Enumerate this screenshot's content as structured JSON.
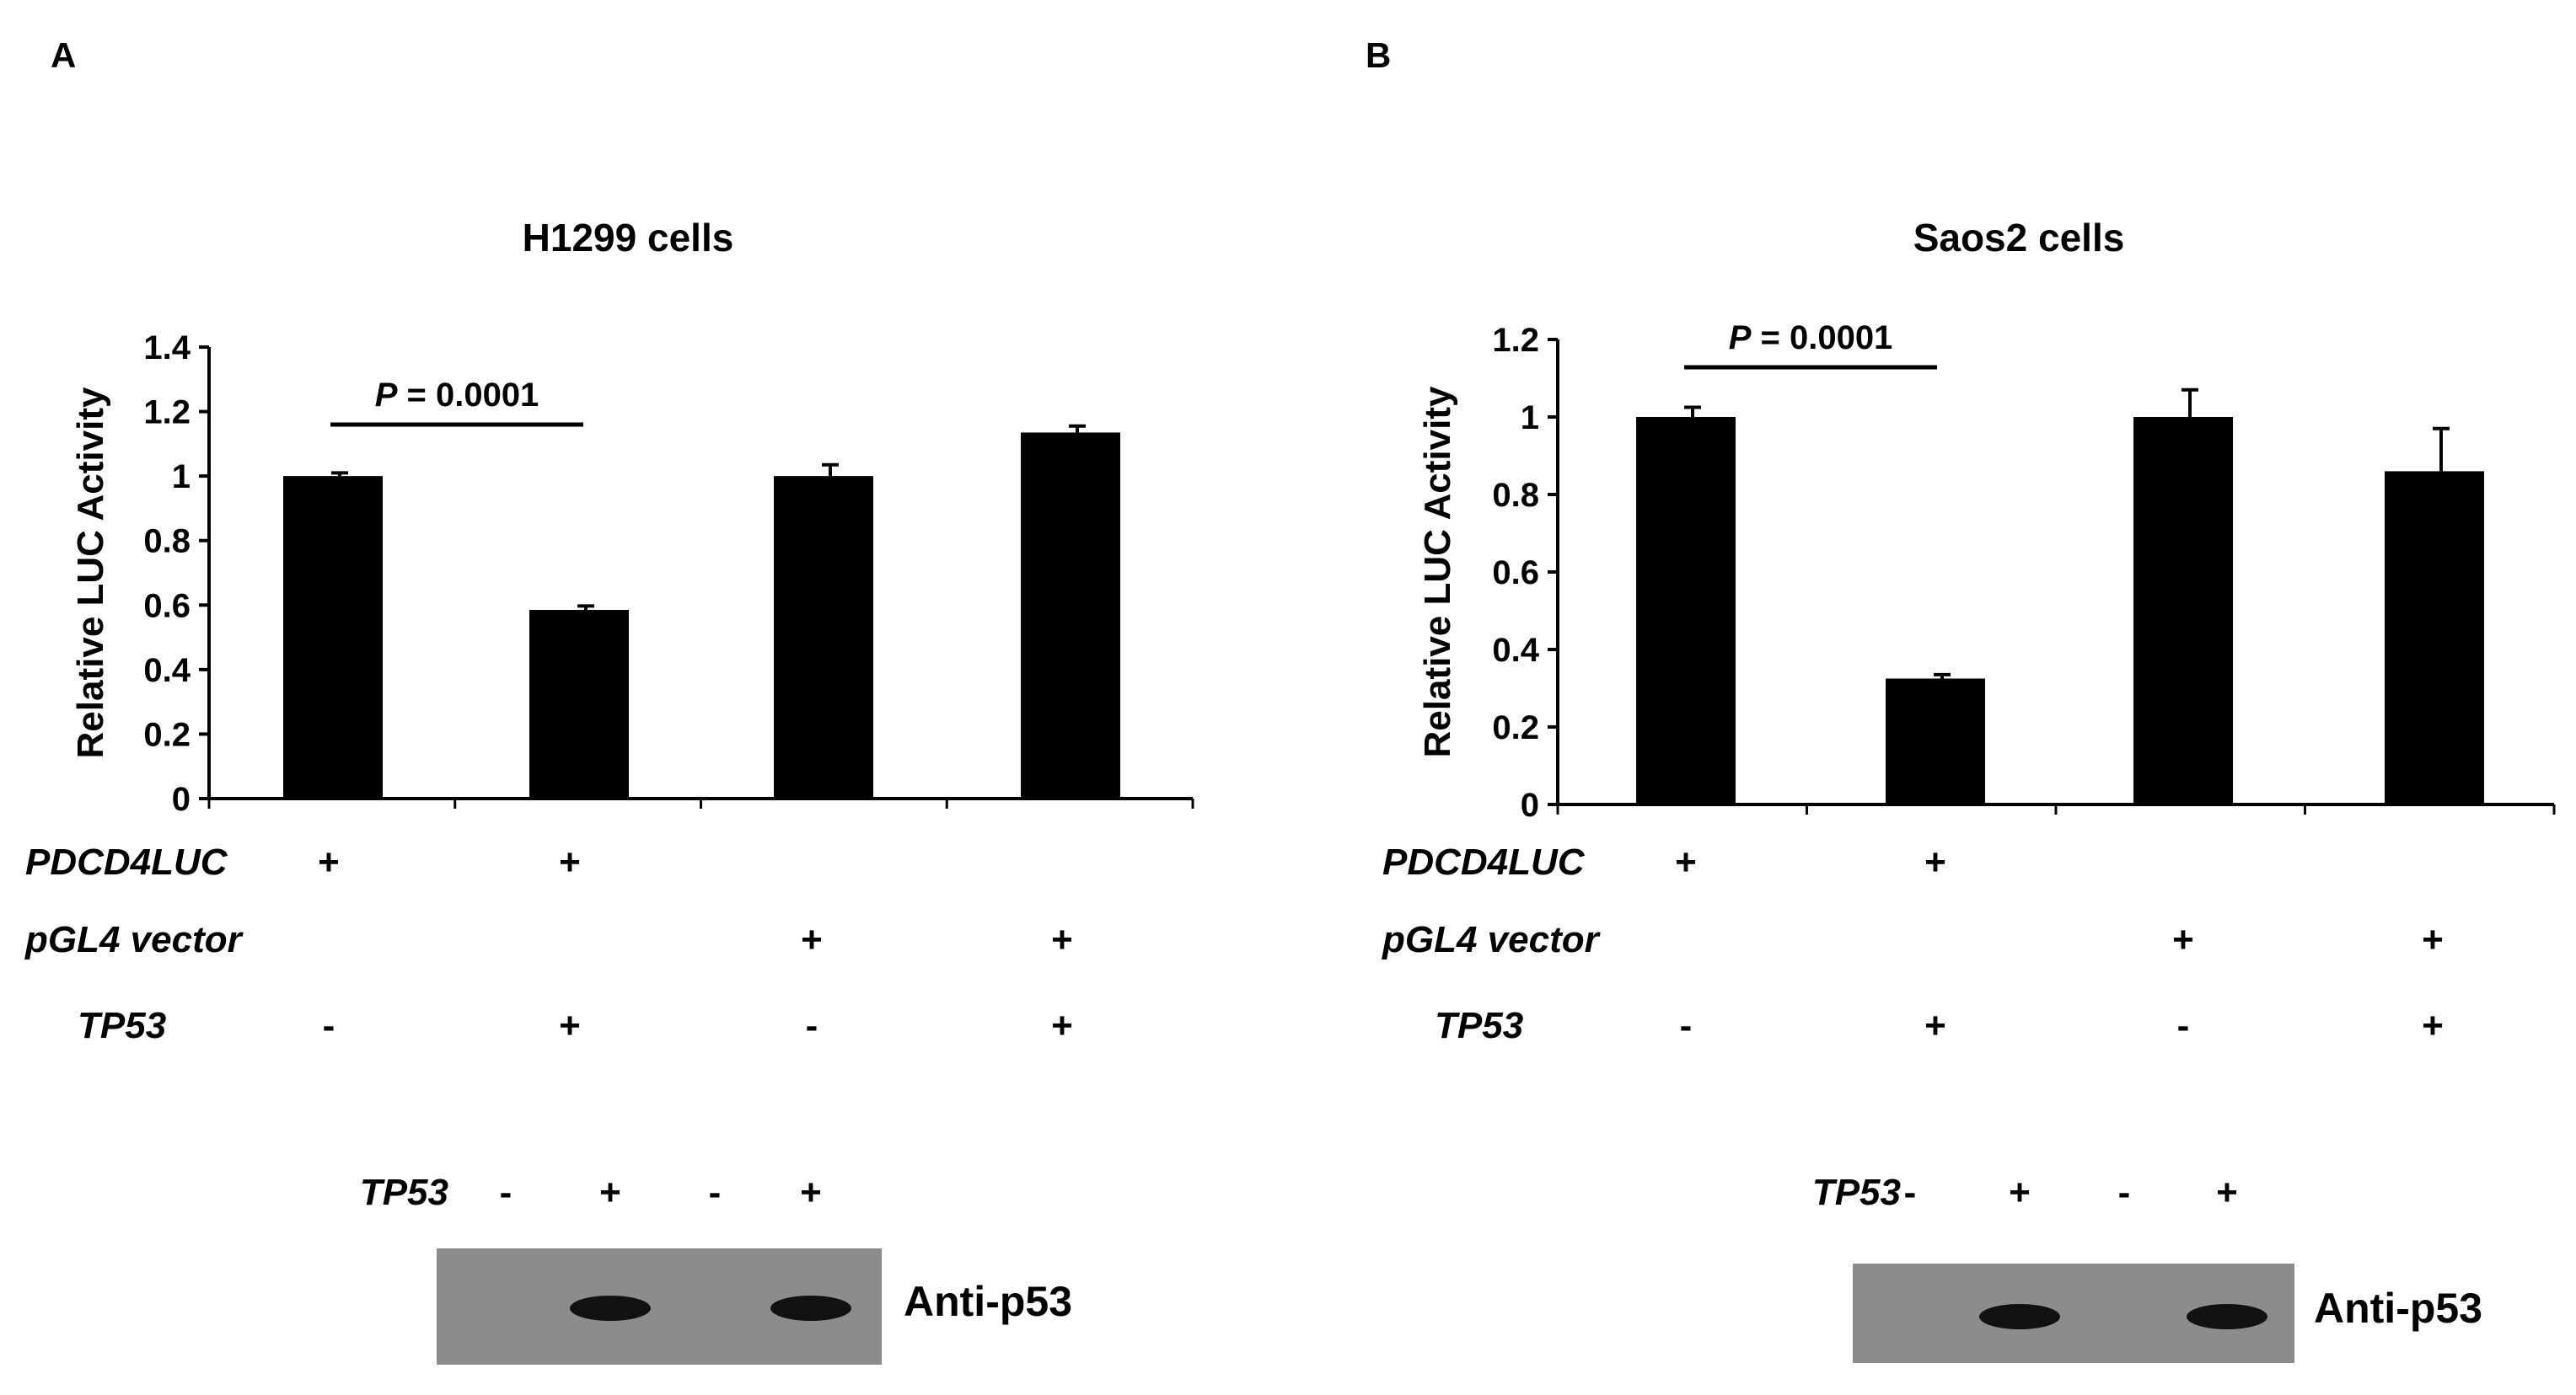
{
  "chart_data": [
    {
      "panel": "A",
      "type": "bar",
      "title": "H1299 cells",
      "ylabel": "Relative LUC Activity",
      "xlabel": "",
      "ylim": [
        0,
        1.4
      ],
      "yticks": [
        "0",
        "0.2",
        "0.4",
        "0.6",
        "0.8",
        "1",
        "1.2",
        "1.4"
      ],
      "values": [
        1.0,
        0.585,
        1.0,
        1.135
      ],
      "errors": [
        0.01,
        0.012,
        0.035,
        0.02
      ],
      "significance": {
        "from": 0,
        "to": 1,
        "label_italic": "P",
        "label_rest": " = 0.0001"
      },
      "conditions": [
        {
          "label": "PDCD4LUC",
          "signs": [
            "+",
            "+",
            "",
            ""
          ]
        },
        {
          "label": "pGL4 vector",
          "signs": [
            "",
            "",
            "+",
            "+"
          ]
        },
        {
          "label": "TP53",
          "signs": [
            "-",
            "+",
            "-",
            "+"
          ]
        }
      ],
      "blot": {
        "lane_label": "TP53",
        "lanes": [
          "-",
          "+",
          "-",
          "+"
        ],
        "bands": [
          0,
          1,
          0,
          1
        ],
        "antibody": "Anti-p53"
      }
    },
    {
      "panel": "B",
      "type": "bar",
      "title": "Saos2 cells",
      "ylabel": "Relative LUC Activity",
      "xlabel": "",
      "ylim": [
        0,
        1.2
      ],
      "yticks": [
        "0",
        "0.2",
        "0.4",
        "0.6",
        "0.8",
        "1",
        "1.2"
      ],
      "values": [
        1.0,
        0.325,
        1.0,
        0.86
      ],
      "errors": [
        0.025,
        0.01,
        0.07,
        0.11
      ],
      "significance": {
        "from": 0,
        "to": 1,
        "label_italic": "P",
        "label_rest": " = 0.0001"
      },
      "conditions": [
        {
          "label": "PDCD4LUC",
          "signs": [
            "+",
            "+",
            "",
            ""
          ]
        },
        {
          "label": "pGL4 vector",
          "signs": [
            "",
            "",
            "+",
            "+"
          ]
        },
        {
          "label": "TP53",
          "signs": [
            "-",
            "+",
            "-",
            "+"
          ]
        }
      ],
      "blot": {
        "lane_label": "TP53",
        "lanes": [
          "-",
          "+",
          "-",
          "+"
        ],
        "bands": [
          0,
          1,
          0,
          1
        ],
        "antibody": "Anti-p53"
      }
    }
  ],
  "colors": {
    "bar": "#000000",
    "blot_bg": "#8c8c8c",
    "band": "#111111"
  }
}
